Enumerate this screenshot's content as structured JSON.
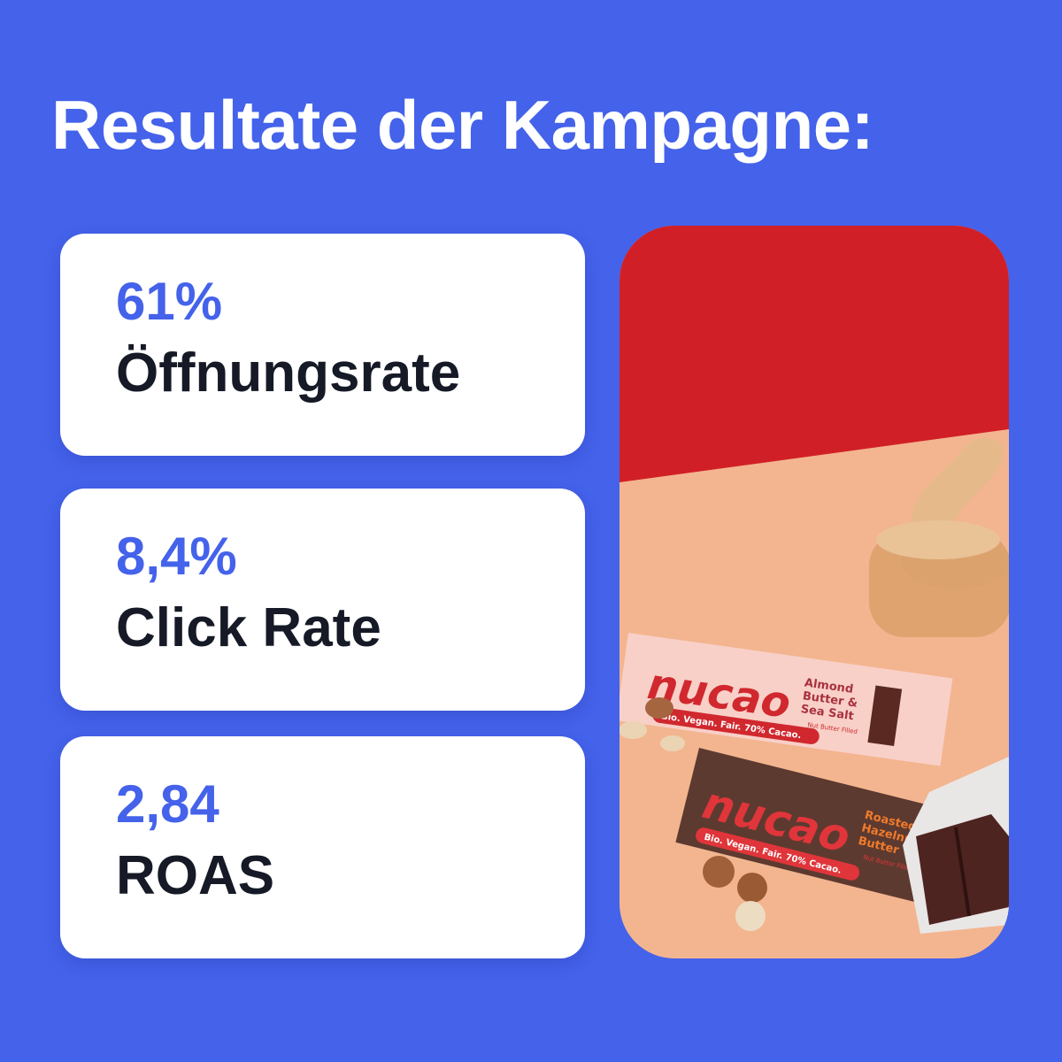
{
  "title": "Resultate der Kampagne:",
  "metrics": [
    {
      "value": "61%",
      "label": "Öffnungsrate"
    },
    {
      "value": "8,4%",
      "label": "Click Rate"
    },
    {
      "value": "2,84",
      "label": "ROAS"
    }
  ],
  "photo": {
    "brand": "nucao",
    "bar1": {
      "flavor_lines": [
        "Almond",
        "Butter &",
        "Sea Salt"
      ],
      "sub": "Nut Butter Filled",
      "tagline": "Bio. Vegan. Fair. 70% Cacao."
    },
    "bar2": {
      "flavor_lines": [
        "Roasted",
        "Hazelnut",
        "Butter"
      ],
      "sub": "Nut Butter Filled",
      "tagline": "Bio. Vegan. Fair. 70% Cacao."
    }
  },
  "colors": {
    "background": "#4462EA",
    "accent": "#4462EA",
    "text": "#161a26",
    "card": "#ffffff"
  }
}
